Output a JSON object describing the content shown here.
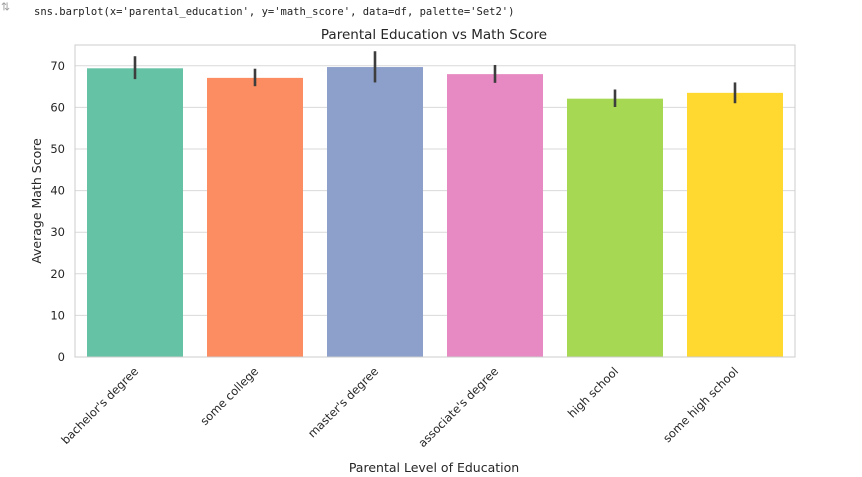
{
  "cell": {
    "code": "sns.barplot(x='parental_education', y='math_score', data=df, palette='Set2')",
    "gutter_icon": "output-toggle-icon"
  },
  "chart_data": {
    "type": "bar",
    "title": "Parental Education vs Math Score",
    "xlabel": "Parental Level of Education",
    "ylabel": "Average Math Score",
    "ylim": [
      0,
      75
    ],
    "yticks": [
      0,
      10,
      20,
      30,
      40,
      50,
      60,
      70
    ],
    "grid": "y",
    "categories": [
      "bachelor's degree",
      "some college",
      "master's degree",
      "associate's degree",
      "high school",
      "some high school"
    ],
    "values": [
      69.4,
      67.1,
      69.7,
      68.0,
      62.1,
      63.5
    ],
    "error_low": [
      66.8,
      65.1,
      66.0,
      65.9,
      60.1,
      61.0
    ],
    "error_high": [
      72.3,
      69.3,
      73.5,
      70.2,
      64.3,
      66.0
    ],
    "colors": [
      "#66c2a5",
      "#fc8d62",
      "#8da0cb",
      "#e78ac3",
      "#a6d854",
      "#ffd92f"
    ]
  }
}
